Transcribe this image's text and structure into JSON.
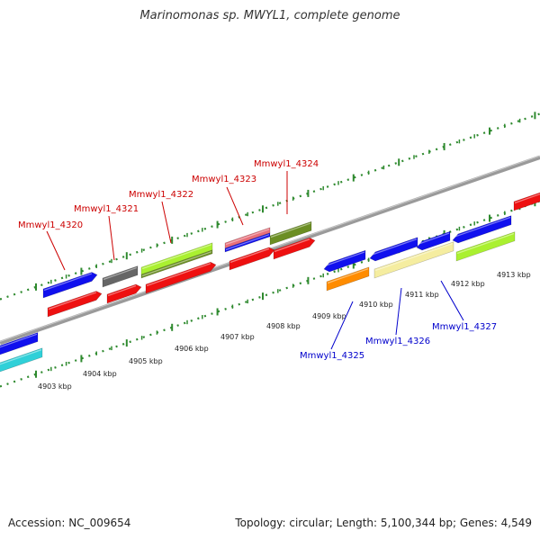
{
  "title": "Marinomonas sp. MWYL1, complete genome",
  "accession": "Accession: NC_009654",
  "topology": "Topology: circular; Length: 5,100,344 bp; Genes: 4,549",
  "colors": {
    "backbone": "#7f7f7f",
    "tick_green": "#2f8a2f",
    "forward_label": "#cc0000",
    "reverse_label": "#0000cc"
  },
  "ticks": {
    "labels": [
      "4903 kbp",
      "4904 kbp",
      "4905 kbp",
      "4906 kbp",
      "4907 kbp",
      "4908 kbp",
      "4909 kbp",
      "4910 kbp",
      "4911 kbp",
      "4912 kbp",
      "4913 kbp"
    ]
  },
  "genes": {
    "forward_labels": [
      "Mmwyl1_4320",
      "Mmwyl1_4321",
      "Mmwyl1_4322",
      "Mmwyl1_4323",
      "Mmwyl1_4324"
    ],
    "reverse_labels": [
      "Mmwyl1_4325",
      "Mmwyl1_4326",
      "Mmwyl1_4327"
    ]
  }
}
